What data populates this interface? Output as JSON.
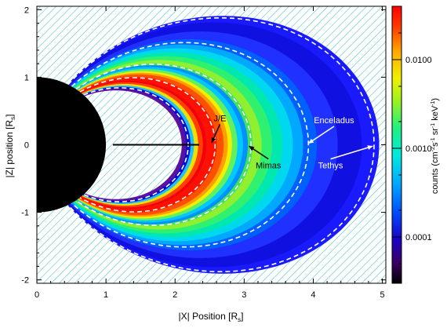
{
  "chart_data": {
    "type": "heatmap",
    "title": "",
    "xlabel": "|X| Position [R_s]",
    "xlabel_parts": {
      "main": "|X| Position [R",
      "sub": "s",
      "close": "]"
    },
    "ylabel": "|Z| position [R_s]",
    "ylabel_parts": {
      "main": "|Z| position [R",
      "sub": "s",
      "close": "]"
    },
    "xlim": [
      0,
      5.05
    ],
    "ylim": [
      -2.05,
      2.05
    ],
    "x_ticks": [
      "0",
      "1",
      "2",
      "3",
      "4",
      "5"
    ],
    "y_ticks": [
      "-2",
      "-1",
      "0",
      "1",
      "2"
    ],
    "colorbar": {
      "scale": "log",
      "range": [
        3e-05,
        0.04
      ],
      "label": "counts (cm^-2 s^-1 sr^-1 keV^-1)",
      "label_parts": {
        "prefix": "counts (cm",
        "e1": "-2",
        "mid1": "s",
        "e2": "-1",
        "mid2": "sr",
        "e3": "-1",
        "mid3": "keV",
        "e4": "-1",
        "suffix": ")"
      },
      "ticks": [
        {
          "value": 0.01,
          "label": "0.0100"
        },
        {
          "value": 0.001,
          "label": "0.0010"
        },
        {
          "value": 0.0001,
          "label": "0.0001"
        }
      ]
    },
    "planet_radius": 1.0,
    "l_shells": [
      {
        "name": "J/E",
        "L": 2.53,
        "label_at": [
          2.65,
          0.35
        ],
        "arrow_to": [
          2.53,
          0.03
        ]
      },
      {
        "name": "Mimas",
        "L": 3.08,
        "label_at": [
          3.35,
          -0.35
        ],
        "arrow_to": [
          3.07,
          -0.02
        ]
      },
      {
        "name": "Enceladus",
        "L": 3.95,
        "label_at": [
          4.3,
          0.32
        ],
        "arrow_to": [
          3.93,
          0.02
        ]
      },
      {
        "name": "Tethys",
        "L": 4.88,
        "label_at": [
          4.25,
          -0.35
        ],
        "arrow_to": [
          4.86,
          -0.02
        ]
      }
    ],
    "field_line_L": [
      2.19,
      2.58,
      3.1,
      3.93,
      4.88
    ],
    "horizontal_line": {
      "x": [
        1.1,
        2.35
      ],
      "z": 0
    }
  }
}
